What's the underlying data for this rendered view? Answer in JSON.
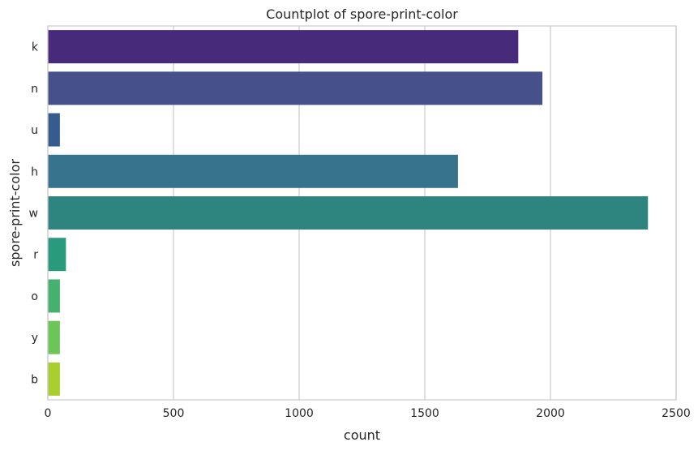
{
  "chart_data": {
    "type": "bar",
    "orientation": "horizontal",
    "title": "Countplot of spore-print-color",
    "xlabel": "count",
    "ylabel": "spore-print-color",
    "categories": [
      "k",
      "n",
      "u",
      "h",
      "w",
      "r",
      "o",
      "y",
      "b"
    ],
    "values": [
      1872,
      1968,
      48,
      1632,
      2388,
      72,
      48,
      48,
      48
    ],
    "xlim": [
      0,
      2500
    ],
    "xticks": [
      0,
      500,
      1000,
      1500,
      2000,
      2500
    ],
    "colors": [
      "#472A7A",
      "#46508A",
      "#365C8D",
      "#37738C",
      "#2E8580",
      "#2A9A7C",
      "#45B06F",
      "#6DC458",
      "#A9CF2E"
    ],
    "grid": "vertical",
    "legend": "none"
  }
}
